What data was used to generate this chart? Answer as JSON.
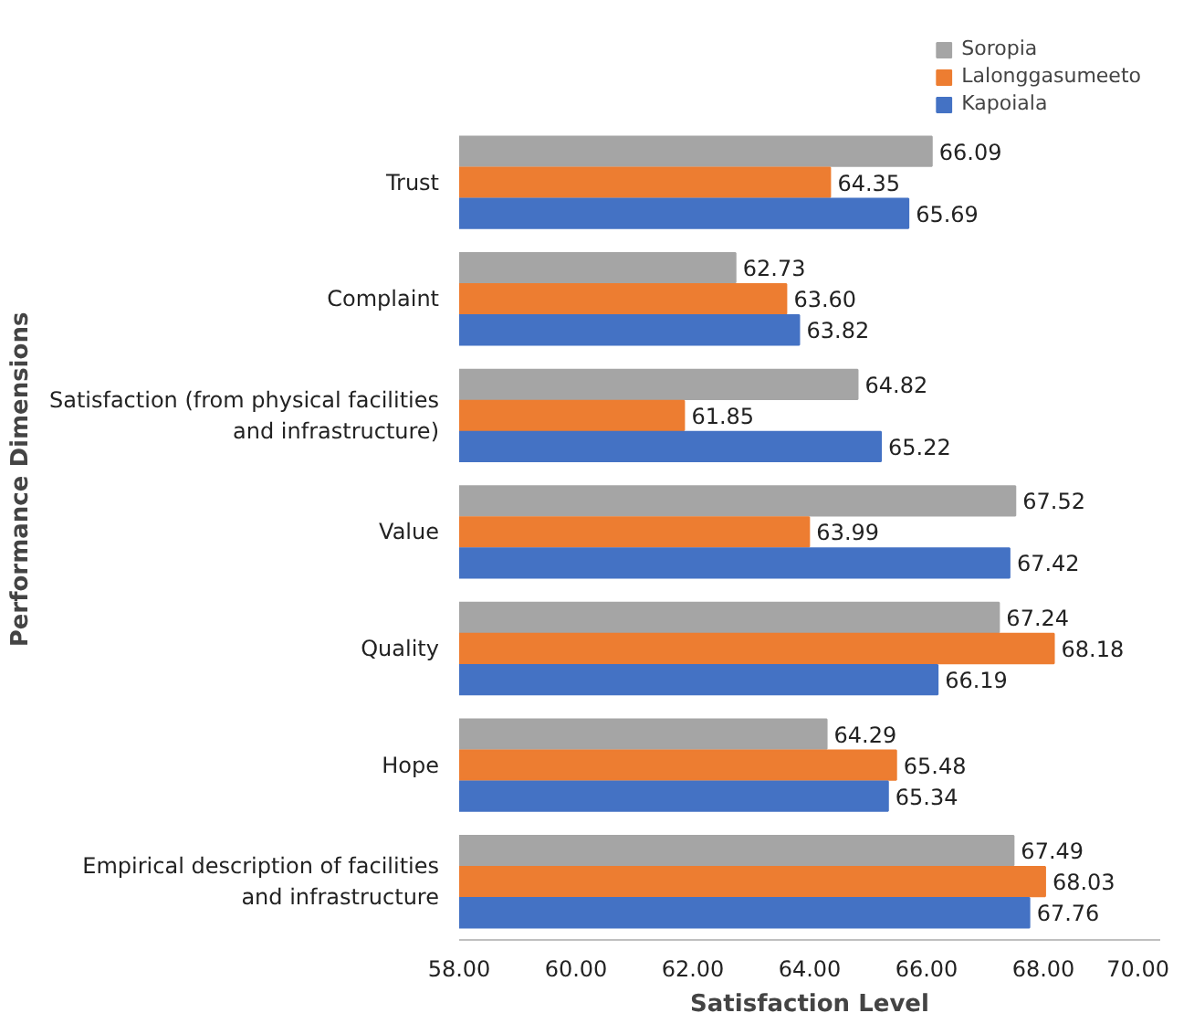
{
  "chart_data": {
    "type": "bar",
    "orientation": "horizontal",
    "xlabel": "Satisfaction Level",
    "ylabel": "Performance Dimensions",
    "categories": [
      "Trust",
      "Complaint",
      "Satisfaction (from physical facilities and infrastructure)",
      "Value",
      "Quality",
      "Hope",
      "Empirical description of facilities and infrastructure"
    ],
    "series": [
      {
        "name": "Soropia",
        "color": "#a5a5a5",
        "values": [
          66.09,
          62.73,
          64.82,
          67.52,
          67.24,
          64.29,
          67.49
        ],
        "value_labels": [
          "66.09",
          "62.73",
          "64.82",
          "67.52",
          "67.24",
          "64.29",
          "67.49"
        ]
      },
      {
        "name": "Lalonggasumeeto",
        "color": "#ed7d31",
        "values": [
          64.35,
          63.6,
          61.85,
          63.99,
          68.18,
          65.48,
          68.03
        ],
        "value_labels": [
          "64.35",
          "63.60",
          "61.85",
          "63.99",
          "68.18",
          "65.48",
          "68.03"
        ]
      },
      {
        "name": "Kapoiala",
        "color": "#4472c4",
        "values": [
          65.69,
          63.82,
          65.22,
          67.42,
          66.19,
          65.34,
          67.76
        ],
        "value_labels": [
          "65.69",
          "63.82",
          "65.22",
          "67.42",
          "66.19",
          "65.34",
          "67.76"
        ]
      }
    ],
    "xlim": [
      58,
      70
    ],
    "xticks": [
      {
        "value": 58,
        "label": "58.00"
      },
      {
        "value": 60,
        "label": "60.00"
      },
      {
        "value": 62,
        "label": "62.00"
      },
      {
        "value": 64,
        "label": "64.00"
      },
      {
        "value": 66,
        "label": "66.00"
      },
      {
        "value": 68,
        "label": "68.00"
      },
      {
        "value": 70,
        "label": "70.00"
      }
    ],
    "grid": false,
    "legend": "top right"
  }
}
